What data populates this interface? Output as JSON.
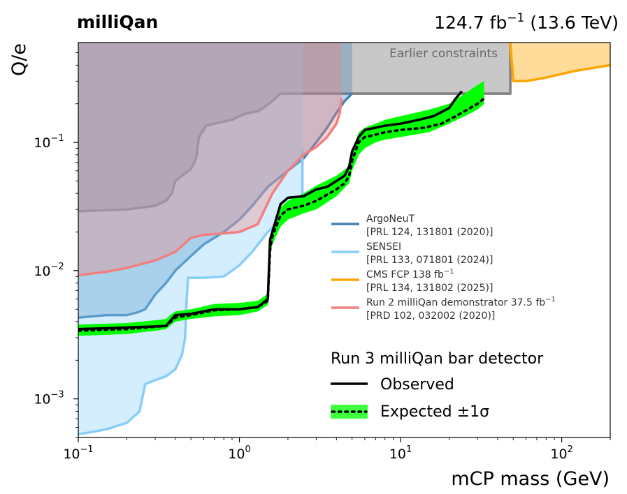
{
  "header": {
    "experiment": "milliQan",
    "lumi_value": "124.7 fb",
    "lumi_exp": "−1",
    "energy": "(13.6 TeV)"
  },
  "chart_data": {
    "type": "area",
    "xlabel": "mCP mass (GeV)",
    "ylabel": "Q/e",
    "xscale": "log",
    "yscale": "log",
    "xlim": [
      0.1,
      200
    ],
    "ylim": [
      0.0005,
      0.6
    ],
    "x_ticks": [
      {
        "value": 0.1,
        "base": "10",
        "exp": "−1"
      },
      {
        "value": 1,
        "base": "10",
        "exp": "0"
      },
      {
        "value": 10,
        "base": "10",
        "exp": "1"
      },
      {
        "value": 100,
        "base": "10",
        "exp": "2"
      }
    ],
    "y_ticks": [
      {
        "value": 0.001,
        "base": "10",
        "exp": "−3"
      },
      {
        "value": 0.01,
        "base": "10",
        "exp": "−2"
      },
      {
        "value": 0.1,
        "base": "10",
        "exp": "−1"
      }
    ],
    "grid": false,
    "earlier_label": "Earlier constraints",
    "series": [
      {
        "name": "Earlier constraints",
        "style": "fill",
        "color": "#c8c8c8",
        "edge": "#808080",
        "points": [
          [
            0.1,
            0.029
          ],
          [
            0.2,
            0.03
          ],
          [
            0.3,
            0.032
          ],
          [
            0.35,
            0.035
          ],
          [
            0.38,
            0.04
          ],
          [
            0.4,
            0.05
          ],
          [
            0.45,
            0.056
          ],
          [
            0.5,
            0.062
          ],
          [
            0.52,
            0.068
          ],
          [
            0.54,
            0.076
          ],
          [
            0.56,
            0.11
          ],
          [
            0.6,
            0.125
          ],
          [
            0.62,
            0.135
          ],
          [
            0.7,
            0.14
          ],
          [
            0.9,
            0.15
          ],
          [
            1.0,
            0.16
          ],
          [
            1.1,
            0.168
          ],
          [
            1.3,
            0.175
          ],
          [
            1.4,
            0.185
          ],
          [
            1.6,
            0.21
          ],
          [
            1.8,
            0.24
          ],
          [
            2.0,
            0.24
          ],
          [
            5,
            0.24
          ],
          [
            10,
            0.24
          ],
          [
            20,
            0.24
          ],
          [
            48,
            0.24
          ],
          [
            48,
            0.6
          ]
        ]
      },
      {
        "name": "ArgoNeuT",
        "ref": "[PRL 124, 131801 (2020)]",
        "style": "fill",
        "color": "#4682b4",
        "fill_opacity": 0.35,
        "points": [
          [
            0.1,
            0.0043
          ],
          [
            0.15,
            0.0045
          ],
          [
            0.2,
            0.0045
          ],
          [
            0.23,
            0.0047
          ],
          [
            0.26,
            0.005
          ],
          [
            0.3,
            0.0065
          ],
          [
            0.35,
            0.008
          ],
          [
            0.4,
            0.01
          ],
          [
            0.5,
            0.013
          ],
          [
            0.6,
            0.016
          ],
          [
            0.8,
            0.02
          ],
          [
            1.0,
            0.025
          ],
          [
            1.2,
            0.032
          ],
          [
            1.5,
            0.045
          ],
          [
            2.0,
            0.06
          ],
          [
            2.5,
            0.075
          ],
          [
            3.0,
            0.1
          ],
          [
            3.5,
            0.13
          ],
          [
            4.0,
            0.17
          ],
          [
            4.5,
            0.21
          ],
          [
            5.0,
            0.24
          ]
        ]
      },
      {
        "name": "SENSEI",
        "ref": "[PRL 133, 071801 (2024)]",
        "style": "fill",
        "color": "#87cefa",
        "fill_opacity": 0.35,
        "points": [
          [
            0.1,
            0.00053
          ],
          [
            0.12,
            0.00055
          ],
          [
            0.15,
            0.00058
          ],
          [
            0.2,
            0.00065
          ],
          [
            0.24,
            0.0008
          ],
          [
            0.26,
            0.0013
          ],
          [
            0.3,
            0.0014
          ],
          [
            0.35,
            0.0015
          ],
          [
            0.4,
            0.0017
          ],
          [
            0.44,
            0.0022
          ],
          [
            0.46,
            0.003
          ],
          [
            0.47,
            0.0058
          ],
          [
            0.48,
            0.0088
          ],
          [
            0.5,
            0.0088
          ],
          [
            0.6,
            0.0088
          ],
          [
            0.8,
            0.009
          ],
          [
            1.0,
            0.011
          ],
          [
            1.2,
            0.014
          ],
          [
            1.5,
            0.02
          ],
          [
            2.0,
            0.028
          ],
          [
            2.3,
            0.035
          ],
          [
            2.46,
            0.038
          ],
          [
            2.46,
            0.09
          ]
        ]
      },
      {
        "name": "CMS FCP 138 fb",
        "name_exp": "−1",
        "ref": "[PRL 134, 131802 (2025)]",
        "style": "fill",
        "color": "#ffa500",
        "fill_opacity": 0.4,
        "points": [
          [
            48,
            0.6
          ],
          [
            50,
            0.3
          ],
          [
            60,
            0.3
          ],
          [
            80,
            0.32
          ],
          [
            120,
            0.36
          ],
          [
            200,
            0.4
          ]
        ]
      },
      {
        "name": "Run 2 milliQan demonstrator 37.5 fb",
        "name_exp": "−1",
        "ref": "[PRD 102, 032002 (2020)]",
        "style": "fill",
        "color": "#f08080",
        "fill_opacity": 0.35,
        "points": [
          [
            0.1,
            0.0092
          ],
          [
            0.15,
            0.0098
          ],
          [
            0.2,
            0.0105
          ],
          [
            0.3,
            0.012
          ],
          [
            0.4,
            0.014
          ],
          [
            0.45,
            0.016
          ],
          [
            0.5,
            0.018
          ],
          [
            0.6,
            0.019
          ],
          [
            0.8,
            0.0195
          ],
          [
            1.0,
            0.02
          ],
          [
            1.3,
            0.023
          ],
          [
            1.6,
            0.04
          ],
          [
            2.0,
            0.06
          ],
          [
            2.5,
            0.08
          ],
          [
            3.0,
            0.092
          ],
          [
            3.5,
            0.11
          ],
          [
            4.0,
            0.14
          ],
          [
            4.2,
            0.17
          ],
          [
            4.3,
            0.22
          ]
        ]
      },
      {
        "name": "Expected ±1σ",
        "style": "band",
        "color": "#00ff00",
        "x": [
          0.1,
          0.2,
          0.3,
          0.35,
          0.38,
          0.4,
          0.5,
          0.7,
          1.0,
          1.3,
          1.5,
          1.55,
          1.6,
          1.8,
          2.0,
          2.5,
          3.0,
          4.0,
          4.8,
          5.0,
          5.5,
          6.0,
          7.0,
          8.0,
          10,
          15,
          20,
          25,
          30,
          33
        ],
        "y_low": [
          0.0031,
          0.0032,
          0.0034,
          0.0035,
          0.0038,
          0.004,
          0.0042,
          0.0044,
          0.0045,
          0.0048,
          0.0054,
          0.0125,
          0.016,
          0.022,
          0.025,
          0.028,
          0.03,
          0.038,
          0.048,
          0.06,
          0.08,
          0.09,
          0.1,
          0.105,
          0.11,
          0.12,
          0.14,
          0.16,
          0.18,
          0.2
        ],
        "y_high": [
          0.0038,
          0.0039,
          0.0041,
          0.0042,
          0.0046,
          0.0048,
          0.005,
          0.0055,
          0.0056,
          0.0058,
          0.0066,
          0.016,
          0.022,
          0.031,
          0.035,
          0.04,
          0.046,
          0.055,
          0.065,
          0.085,
          0.12,
          0.13,
          0.14,
          0.15,
          0.16,
          0.18,
          0.2,
          0.24,
          0.28,
          0.3
        ]
      },
      {
        "name": "Observed",
        "style": "line",
        "color": "#000000",
        "dash": "solid",
        "points": [
          [
            0.1,
            0.0035
          ],
          [
            0.2,
            0.0036
          ],
          [
            0.35,
            0.0037
          ],
          [
            0.4,
            0.0045
          ],
          [
            0.5,
            0.0046
          ],
          [
            0.7,
            0.005
          ],
          [
            1.0,
            0.005
          ],
          [
            1.3,
            0.0052
          ],
          [
            1.5,
            0.006
          ],
          [
            1.55,
            0.0175
          ],
          [
            1.6,
            0.02
          ],
          [
            1.8,
            0.033
          ],
          [
            2.0,
            0.037
          ],
          [
            2.5,
            0.038
          ],
          [
            3.0,
            0.043
          ],
          [
            3.5,
            0.045
          ],
          [
            4.0,
            0.05
          ],
          [
            4.5,
            0.055
          ],
          [
            4.8,
            0.065
          ],
          [
            5.0,
            0.085
          ],
          [
            5.5,
            0.11
          ],
          [
            6.0,
            0.125
          ],
          [
            7.0,
            0.13
          ],
          [
            8.0,
            0.135
          ],
          [
            10,
            0.14
          ],
          [
            13,
            0.15
          ],
          [
            16,
            0.16
          ],
          [
            20,
            0.185
          ],
          [
            22,
            0.22
          ],
          [
            24,
            0.25
          ]
        ]
      },
      {
        "name": "Expected ±1σ",
        "style": "line",
        "color": "#000000",
        "dash": "dotted",
        "points": [
          [
            0.1,
            0.0034
          ],
          [
            0.2,
            0.0035
          ],
          [
            0.35,
            0.0037
          ],
          [
            0.4,
            0.0043
          ],
          [
            0.5,
            0.0045
          ],
          [
            0.7,
            0.0049
          ],
          [
            1.0,
            0.005
          ],
          [
            1.3,
            0.0052
          ],
          [
            1.5,
            0.0058
          ],
          [
            1.55,
            0.0145
          ],
          [
            1.6,
            0.0185
          ],
          [
            1.8,
            0.027
          ],
          [
            2.0,
            0.03
          ],
          [
            2.5,
            0.032
          ],
          [
            3.0,
            0.035
          ],
          [
            4.0,
            0.043
          ],
          [
            4.5,
            0.048
          ],
          [
            4.8,
            0.055
          ],
          [
            5.0,
            0.072
          ],
          [
            5.5,
            0.1
          ],
          [
            6.0,
            0.11
          ],
          [
            7.0,
            0.115
          ],
          [
            8.0,
            0.12
          ],
          [
            10,
            0.125
          ],
          [
            14,
            0.13
          ],
          [
            18,
            0.14
          ],
          [
            22,
            0.16
          ],
          [
            26,
            0.18
          ],
          [
            30,
            0.2
          ],
          [
            33,
            0.22
          ]
        ]
      }
    ],
    "legend": {
      "placement": "lower-right",
      "entries": [
        {
          "name": "ArgoNeuT",
          "ref": "[PRL 124, 131801 (2020)]",
          "color": "#4682b4"
        },
        {
          "name": "SENSEI",
          "ref": "[PRL 133, 071801 (2024)]",
          "color": "#87cefa"
        },
        {
          "name": "CMS FCP 138 fb",
          "name_exp": "−1",
          "ref": "[PRL 134, 131802 (2025)]",
          "color": "#ffa500"
        },
        {
          "name": "Run 2 milliQan demonstrator 37.5 fb",
          "name_exp": "−1",
          "ref": "[PRD 102, 032002 (2020)]",
          "color": "#f08080"
        }
      ],
      "group_title": "Run 3 milliQan bar detector",
      "observed_label": "Observed",
      "expected_label": "Expected ±1σ"
    }
  }
}
